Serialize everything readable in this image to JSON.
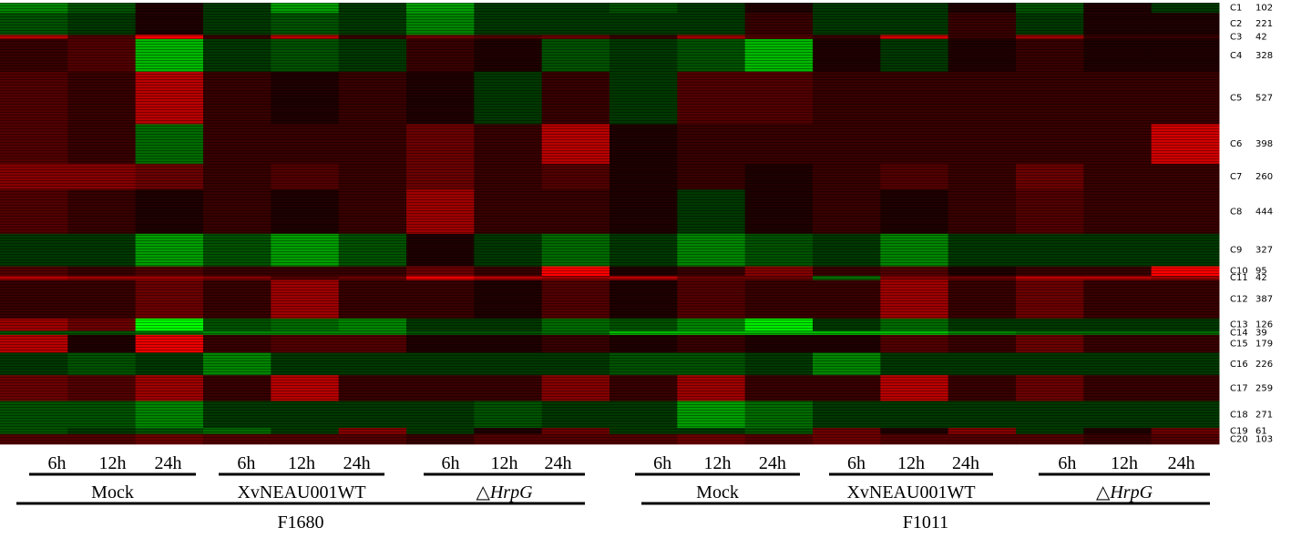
{
  "chart_data": {
    "type": "heatmap",
    "clusters": [
      {
        "name": "C1",
        "size": 102,
        "values": [
          -0.4,
          -0.2,
          0,
          -0.1,
          -0.5,
          -0.1,
          -0.5,
          -0.1,
          -0.1,
          -0.2,
          -0.1,
          0,
          -0.1,
          -0.1,
          0,
          -0.2,
          0,
          -0.1
        ]
      },
      {
        "name": "C2",
        "size": 221,
        "values": [
          -0.2,
          -0.1,
          0,
          -0.1,
          -0.2,
          -0.1,
          -0.4,
          -0.1,
          -0.1,
          -0.1,
          -0.1,
          0.1,
          -0.1,
          -0.1,
          0.1,
          -0.1,
          0,
          0
        ]
      },
      {
        "name": "C3",
        "size": 42,
        "values": [
          0.6,
          0.2,
          0.9,
          0.1,
          0.6,
          0.1,
          0.3,
          0.2,
          0.3,
          0.1,
          0.5,
          0.2,
          0.1,
          0.7,
          0.1,
          0.5,
          0.1,
          0.1
        ]
      },
      {
        "name": "C4",
        "size": 328,
        "values": [
          0.1,
          0.2,
          -0.6,
          -0.1,
          -0.2,
          -0.1,
          0.1,
          0,
          -0.2,
          -0.1,
          -0.2,
          -0.6,
          0,
          -0.1,
          0,
          0.1,
          0,
          0
        ]
      },
      {
        "name": "C5",
        "size": 527,
        "values": [
          0.2,
          0.1,
          0.6,
          0.1,
          0,
          0.1,
          0,
          -0.1,
          0.1,
          -0.1,
          0.2,
          0.2,
          0.1,
          0.1,
          0.1,
          0.1,
          0.1,
          0.1
        ]
      },
      {
        "name": "C6",
        "size": 398,
        "values": [
          0.2,
          0.1,
          -0.3,
          0.1,
          0.1,
          0.1,
          0.3,
          0.1,
          0.6,
          0,
          0.1,
          0.1,
          0.1,
          0.1,
          0.1,
          0.1,
          0.1,
          0.7
        ]
      },
      {
        "name": "C7",
        "size": 260,
        "values": [
          0.4,
          0.4,
          0.3,
          0.1,
          0.2,
          0.1,
          0.3,
          0.1,
          0.2,
          0,
          0.1,
          0,
          0.1,
          0.2,
          0.1,
          0.3,
          0.1,
          0.1
        ]
      },
      {
        "name": "C8",
        "size": 444,
        "values": [
          0.2,
          0.1,
          0,
          0.1,
          0,
          0.1,
          0.5,
          0.1,
          0.1,
          0,
          -0.1,
          0,
          0.1,
          0,
          0.1,
          0.2,
          0.1,
          0.1
        ]
      },
      {
        "name": "C9",
        "size": 327,
        "values": [
          -0.1,
          -0.1,
          -0.5,
          -0.2,
          -0.5,
          -0.2,
          0,
          -0.1,
          -0.3,
          -0.1,
          -0.4,
          -0.2,
          -0.1,
          -0.4,
          -0.1,
          -0.1,
          -0.1,
          -0.1
        ]
      },
      {
        "name": "C10",
        "size": 95,
        "values": [
          0.2,
          0.1,
          0.2,
          0.1,
          0.1,
          0.1,
          0.3,
          0.1,
          0.9,
          0,
          0.1,
          0.4,
          0.1,
          0.2,
          0,
          0.1,
          0.1,
          0.9
        ]
      },
      {
        "name": "C11",
        "size": 42,
        "values": [
          0.6,
          0.5,
          0.5,
          0.4,
          0.2,
          0.3,
          0.8,
          0.6,
          0.5,
          0.6,
          0.3,
          0.3,
          -0.3,
          0.4,
          0.3,
          0.6,
          0.6,
          0.5
        ]
      },
      {
        "name": "C12",
        "size": 387,
        "values": [
          0.1,
          0.1,
          0.3,
          0.1,
          0.5,
          0.1,
          0.1,
          0,
          0.2,
          0,
          0.2,
          0.1,
          0.1,
          0.5,
          0.1,
          0.3,
          0.1,
          0.1
        ]
      },
      {
        "name": "C13",
        "size": 126,
        "values": [
          0.5,
          0.3,
          -0.9,
          -0.2,
          -0.3,
          -0.4,
          -0.1,
          -0.1,
          -0.3,
          -0.2,
          -0.4,
          -0.8,
          -0.1,
          -0.3,
          -0.1,
          -0.1,
          -0.1,
          -0.1
        ]
      },
      {
        "name": "C14",
        "size": 39,
        "values": [
          -0.2,
          -0.2,
          -0.3,
          -0.4,
          -0.4,
          -0.4,
          -0.2,
          -0.2,
          -0.3,
          -0.6,
          -0.6,
          -0.6,
          -0.6,
          -0.6,
          -0.4,
          -0.3,
          -0.3,
          -0.3
        ]
      },
      {
        "name": "C15",
        "size": 179,
        "values": [
          0.6,
          0,
          0.8,
          0.1,
          0.2,
          0.2,
          0,
          0,
          0.1,
          0,
          0.1,
          0,
          0,
          0.2,
          0.1,
          0.3,
          0.1,
          0.1
        ]
      },
      {
        "name": "C16",
        "size": 226,
        "values": [
          -0.1,
          -0.2,
          -0.1,
          -0.4,
          -0.1,
          -0.1,
          -0.1,
          -0.1,
          -0.1,
          -0.2,
          -0.2,
          -0.1,
          -0.4,
          -0.1,
          -0.1,
          -0.1,
          -0.1,
          -0.1
        ]
      },
      {
        "name": "C17",
        "size": 259,
        "values": [
          0.3,
          0.2,
          0.5,
          0.1,
          0.6,
          0.1,
          0.1,
          0.1,
          0.4,
          0.1,
          0.5,
          0.1,
          0.1,
          0.6,
          0.1,
          0.3,
          0.1,
          0.1
        ]
      },
      {
        "name": "C18",
        "size": 271,
        "values": [
          -0.2,
          -0.2,
          -0.4,
          -0.1,
          -0.1,
          -0.1,
          -0.1,
          -0.2,
          -0.1,
          -0.1,
          -0.5,
          -0.3,
          -0.1,
          -0.1,
          -0.1,
          -0.1,
          -0.1,
          -0.1
        ]
      },
      {
        "name": "C19",
        "size": 61,
        "values": [
          -0.2,
          -0.1,
          -0.2,
          -0.3,
          -0.1,
          0.4,
          -0.1,
          0,
          0.3,
          -0.1,
          -0.1,
          -0.2,
          0.3,
          0,
          0.4,
          -0.1,
          0,
          0.3
        ]
      },
      {
        "name": "C20",
        "size": 103,
        "values": [
          0.2,
          0.2,
          0.3,
          0.2,
          0.2,
          0.2,
          0.1,
          0.2,
          0.2,
          0.2,
          0.3,
          0.2,
          0.3,
          0.2,
          0.2,
          0.2,
          0.1,
          0.2
        ]
      }
    ],
    "groups": [
      {
        "name": "F1680",
        "treatments": [
          {
            "name": "Mock",
            "times": [
              "6h",
              "12h",
              "24h"
            ]
          },
          {
            "name": "XvNEAU001WT",
            "times": [
              "6h",
              "12h",
              "24h"
            ]
          },
          {
            "name": "△HrpG",
            "times": [
              "6h",
              "12h",
              "24h"
            ]
          }
        ]
      },
      {
        "name": "F1011",
        "treatments": [
          {
            "name": "Mock",
            "times": [
              "6h",
              "12h",
              "24h"
            ]
          },
          {
            "name": "XvNEAU001WT",
            "times": [
              "6h",
              "12h",
              "24h"
            ]
          },
          {
            "name": "△HrpG",
            "times": [
              "6h",
              "12h",
              "24h"
            ]
          }
        ]
      }
    ],
    "colors": {
      "up": "#ff0000",
      "down": "#00ff00"
    }
  }
}
